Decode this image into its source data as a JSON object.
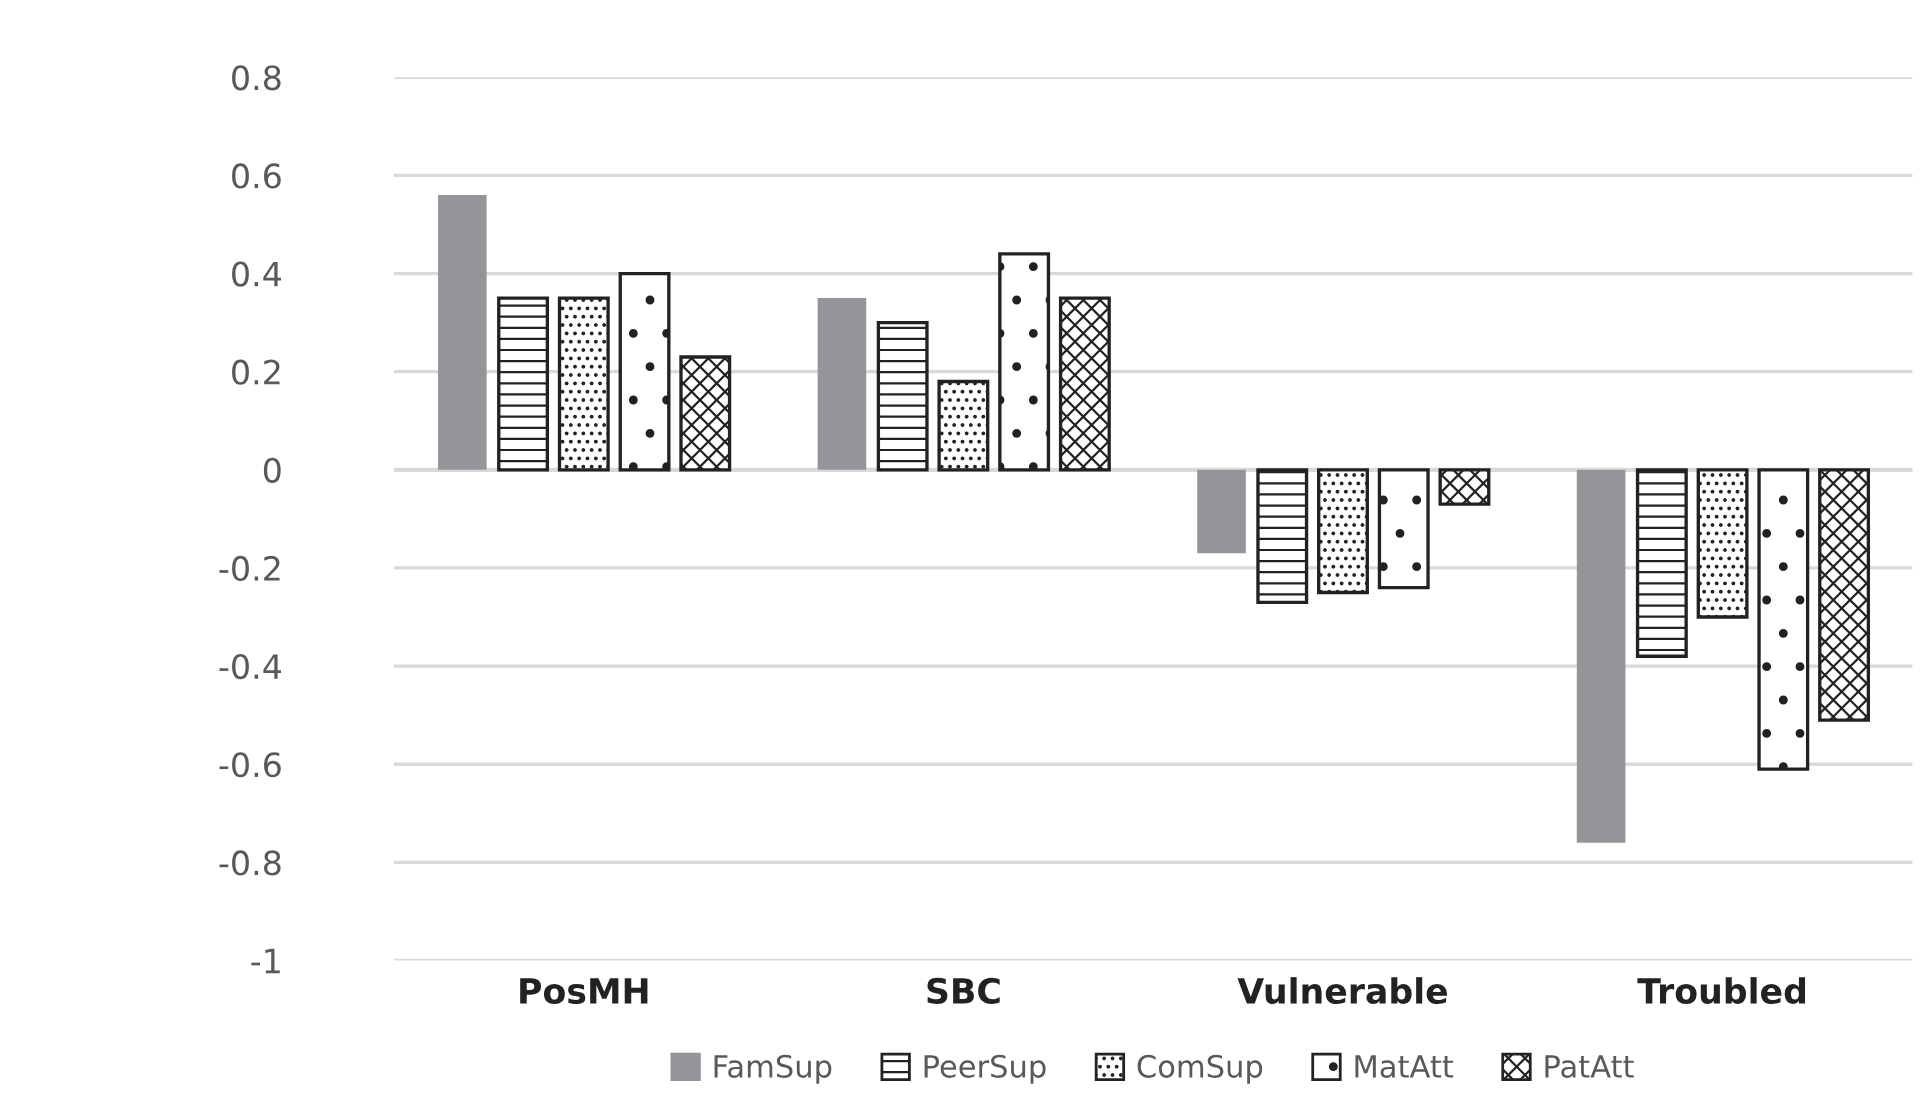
{
  "chart_data": {
    "type": "bar",
    "categories": [
      "PosMH",
      "SBC",
      "Vulnerable",
      "Troubled"
    ],
    "series": [
      {
        "name": "FamSup",
        "color": "#939598",
        "values": [
          0.56,
          0.35,
          -0.17,
          -0.76
        ]
      },
      {
        "name": "PeerSup",
        "color": "#222222",
        "values": [
          0.35,
          0.3,
          -0.27,
          -0.38
        ]
      },
      {
        "name": "ComSup",
        "color": "#222222",
        "values": [
          0.35,
          0.18,
          -0.25,
          -0.3
        ]
      },
      {
        "name": "MatAtt",
        "color": "#222222",
        "values": [
          0.4,
          0.44,
          -0.24,
          -0.61
        ]
      },
      {
        "name": "PatAtt",
        "color": "#222222",
        "values": [
          0.23,
          0.35,
          -0.07,
          -0.51
        ]
      }
    ],
    "ylim": [
      -1,
      0.8
    ],
    "yticks": [
      {
        "value": 0.8,
        "label": "0.8"
      },
      {
        "value": 0.6,
        "label": "0.6"
      },
      {
        "value": 0.4,
        "label": "0.4"
      },
      {
        "value": 0.2,
        "label": "0.2"
      },
      0,
      {
        "value": -0.2,
        "label": "-0.2"
      },
      {
        "value": -0.4,
        "label": "-0.4"
      },
      {
        "value": -0.6,
        "label": "-0.6"
      },
      {
        "value": -0.8,
        "label": "-0.8"
      },
      {
        "value": -1,
        "label": "-1"
      }
    ],
    "grid": "y",
    "legend": "bottom"
  }
}
